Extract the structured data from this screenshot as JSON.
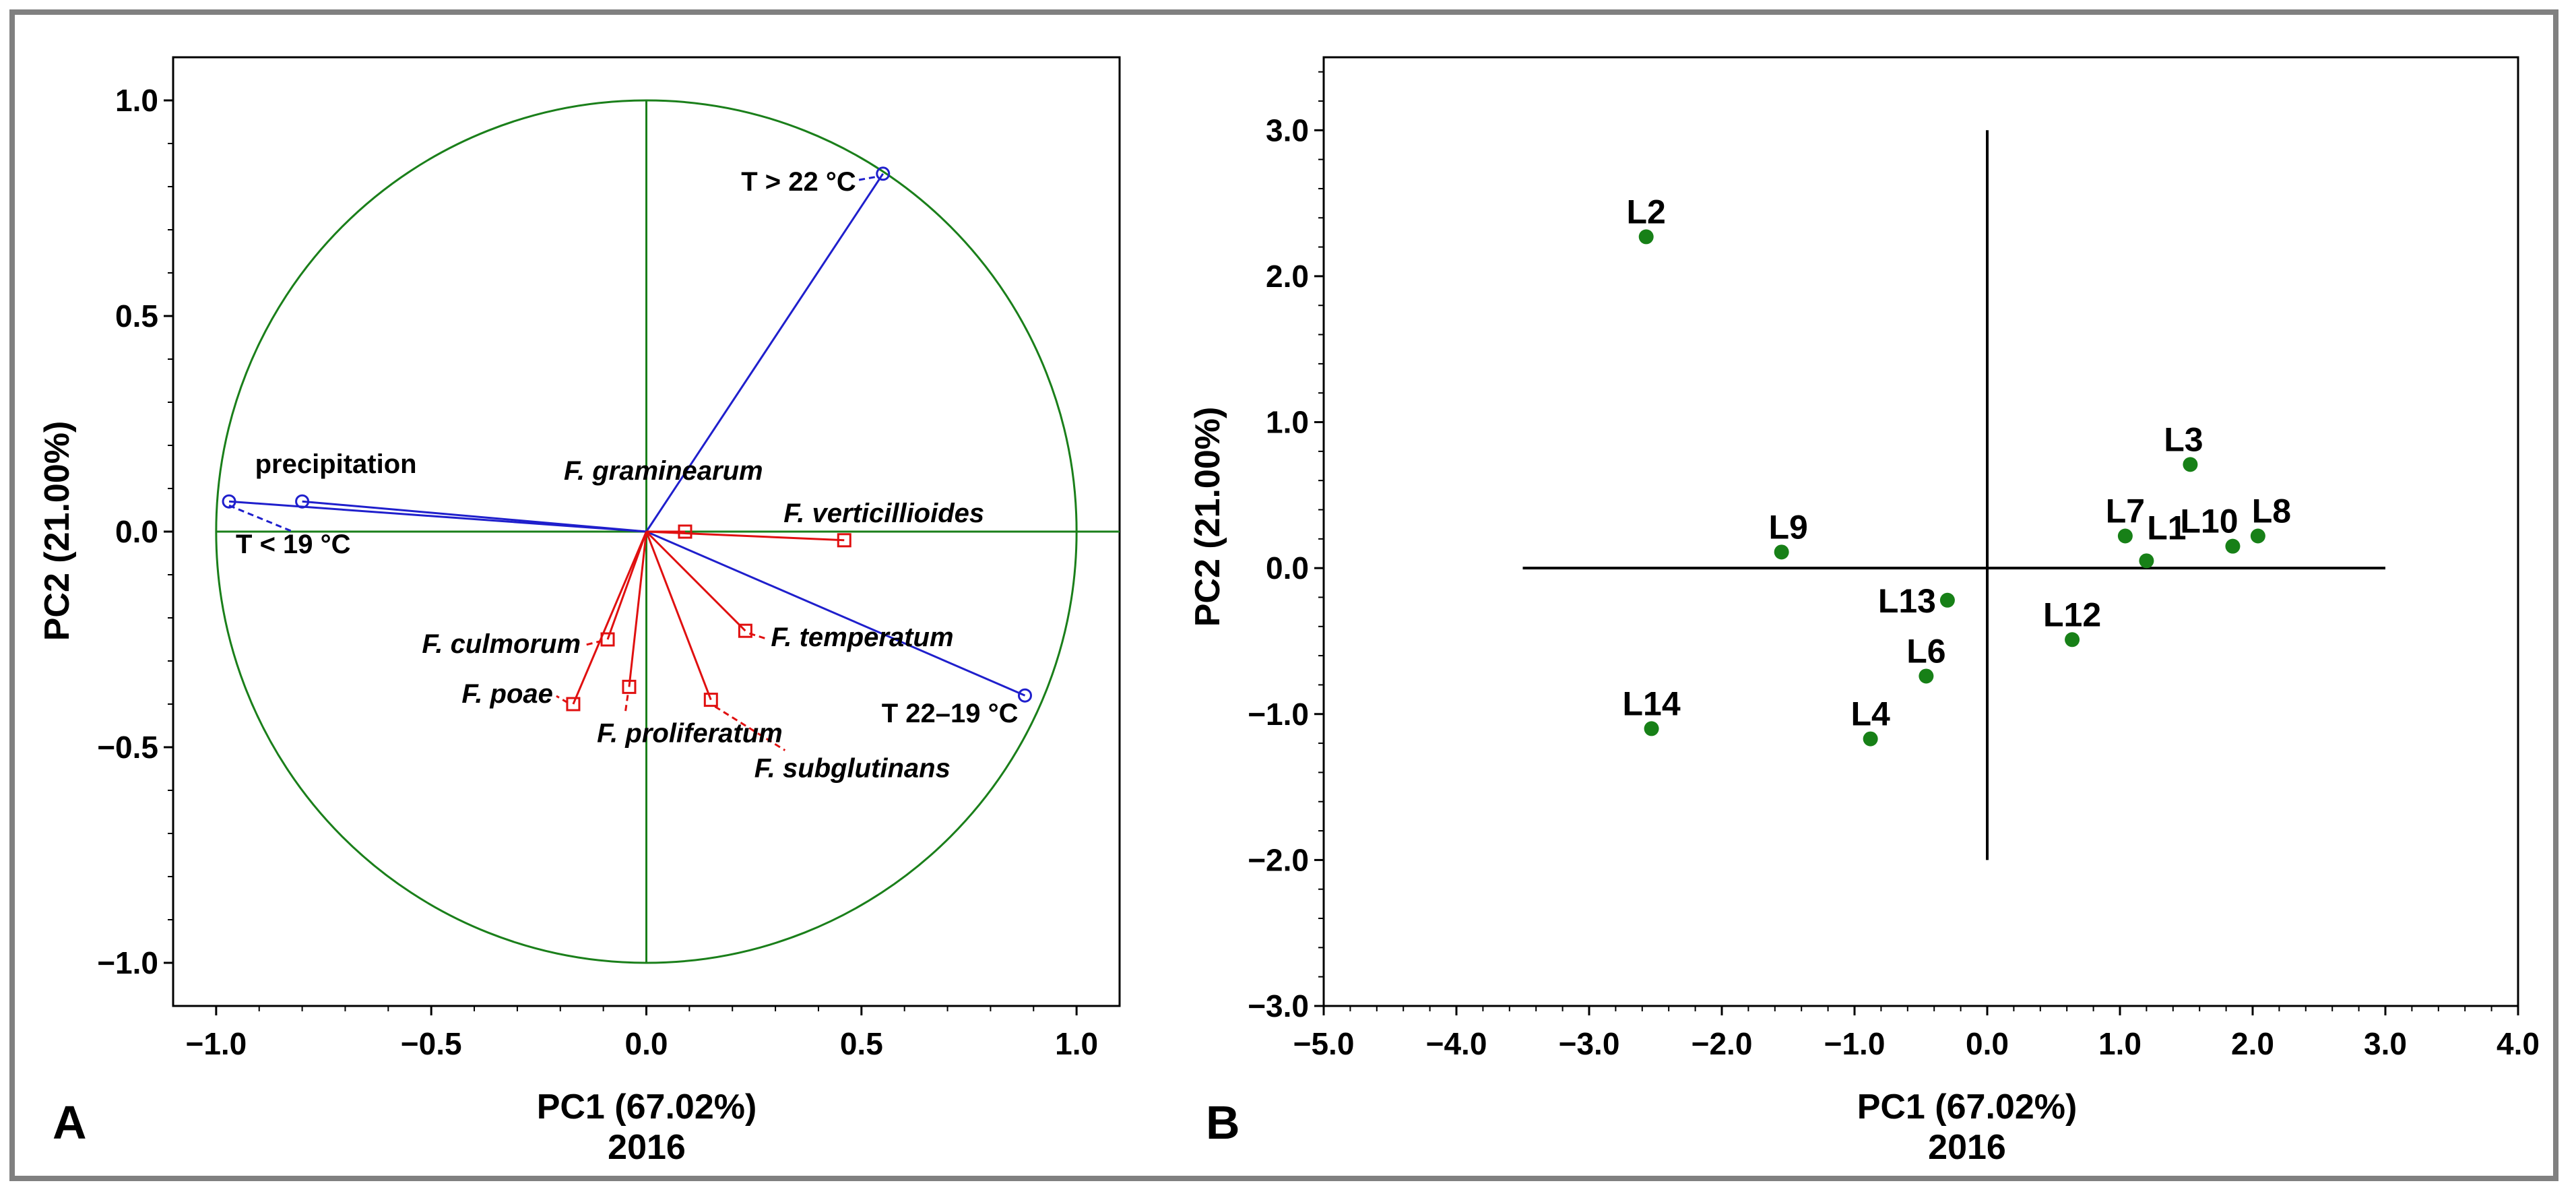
{
  "figure": {
    "panel_a_label": "A",
    "panel_b_label": "B",
    "colors": {
      "circle": "#1a7f1a",
      "axes_lines": "#1a7f1a",
      "environment_vectors": "#1f1fcc",
      "species_vectors": "#e01010",
      "observation_points": "#178017",
      "frame": "#808080"
    }
  },
  "chart_data": [
    {
      "type": "scatter",
      "subtype": "biplot-correlation-circle",
      "title": "",
      "xlabel": "PC1 (67.02%)",
      "xlabel2": "2016",
      "ylabel": "PC2 (21.00%)",
      "xlim": [
        -1.1,
        1.1
      ],
      "ylim": [
        -1.1,
        1.1
      ],
      "xticks": [
        -1.0,
        -0.5,
        0.0,
        0.5,
        1.0
      ],
      "xtick_labels": [
        "−1.0",
        "−0.5",
        "0.0",
        "0.5",
        "1.0"
      ],
      "yticks": [
        -1.0,
        -0.5,
        0.0,
        0.5,
        1.0
      ],
      "ytick_labels": [
        "−1.0",
        "−0.5",
        "0.0",
        "0.5",
        "1.0"
      ],
      "circle_radius": 1.0,
      "series": [
        {
          "name": "environmental variables",
          "marker": "circle",
          "points": [
            {
              "label": "T > 22 °C",
              "x": 0.55,
              "y": 0.83
            },
            {
              "label": "precipitation",
              "x": -0.8,
              "y": 0.07
            },
            {
              "label": "T < 19 °C",
              "x": -0.97,
              "y": 0.07
            },
            {
              "label": "T 22–19 °C",
              "x": 0.88,
              "y": -0.38
            }
          ]
        },
        {
          "name": "Fusarium species",
          "marker": "square",
          "points": [
            {
              "label": "F. graminearum",
              "x": 0.09,
              "y": 0.0
            },
            {
              "label": "F. verticillioides",
              "x": 0.46,
              "y": -0.02
            },
            {
              "label": "F. temperatum",
              "x": 0.23,
              "y": -0.23
            },
            {
              "label": "F. culmorum",
              "x": -0.09,
              "y": -0.25
            },
            {
              "label": "F. poae",
              "x": -0.17,
              "y": -0.4
            },
            {
              "label": "F. proliferatum",
              "x": -0.04,
              "y": -0.36
            },
            {
              "label": "F. subglutinans",
              "x": 0.15,
              "y": -0.39
            }
          ]
        }
      ]
    },
    {
      "type": "scatter",
      "title": "",
      "xlabel": "PC1 (67.02%)",
      "xlabel2": "2016",
      "ylabel": "PC2 (21.00%)",
      "xlim": [
        -5.0,
        4.0
      ],
      "ylim": [
        -3.0,
        3.5
      ],
      "xticks": [
        -5,
        -4,
        -3,
        -2,
        -1,
        0,
        1,
        2,
        3,
        4
      ],
      "xtick_labels": [
        "−5.0",
        "−4.0",
        "−3.0",
        "−2.0",
        "−1.0",
        "0.0",
        "1.0",
        "2.0",
        "3.0",
        "4.0"
      ],
      "yticks": [
        -3,
        -2,
        -1,
        0,
        1,
        2,
        3
      ],
      "ytick_labels": [
        "−3.0",
        "−2.0",
        "−1.0",
        "0.0",
        "1.0",
        "2.0",
        "3.0"
      ],
      "axis_cross": {
        "h_from": -3.5,
        "h_to": 3.0,
        "v_from": -2.0,
        "v_to": 3.0
      },
      "series": [
        {
          "name": "locations",
          "points": [
            {
              "label": "L1",
              "x": 1.2,
              "y": 0.05
            },
            {
              "label": "L2",
              "x": -2.57,
              "y": 2.27
            },
            {
              "label": "L3",
              "x": 1.53,
              "y": 0.71
            },
            {
              "label": "L4",
              "x": -0.88,
              "y": -1.17
            },
            {
              "label": "L6",
              "x": -0.46,
              "y": -0.74
            },
            {
              "label": "L7",
              "x": 1.04,
              "y": 0.22
            },
            {
              "label": "L8",
              "x": 2.04,
              "y": 0.22
            },
            {
              "label": "L9",
              "x": -1.55,
              "y": 0.11
            },
            {
              "label": "L10",
              "x": 1.85,
              "y": 0.15
            },
            {
              "label": "L12",
              "x": 0.64,
              "y": -0.49
            },
            {
              "label": "L13",
              "x": -0.3,
              "y": -0.22
            },
            {
              "label": "L14",
              "x": -2.53,
              "y": -1.1
            }
          ]
        }
      ]
    }
  ]
}
